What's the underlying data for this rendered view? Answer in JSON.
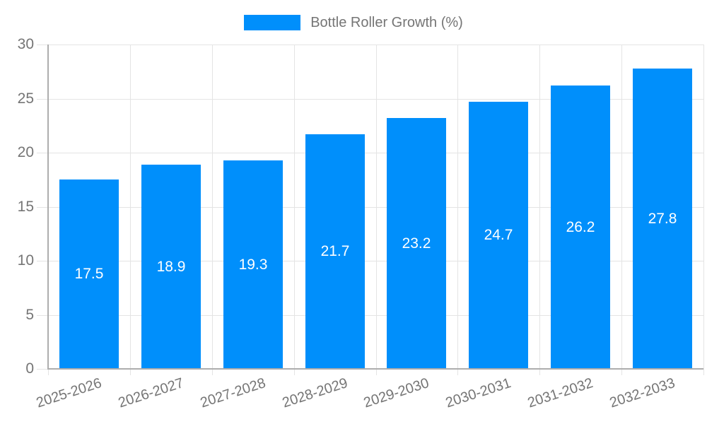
{
  "legend": {
    "label": "Bottle Roller Growth (%)",
    "swatch_color": "#008FFB"
  },
  "chart_data": {
    "type": "bar",
    "title": "",
    "series_name": "Bottle Roller Growth (%)",
    "categories": [
      "2025-2026",
      "2026-2027",
      "2027-2028",
      "2028-2029",
      "2029-2030",
      "2030-2031",
      "2031-2032",
      "2032-2033"
    ],
    "values": [
      17.5,
      18.9,
      19.3,
      21.7,
      23.2,
      24.7,
      26.2,
      27.8
    ],
    "data_labels": [
      "17.5",
      "18.9",
      "19.3",
      "21.7",
      "23.2",
      "24.7",
      "26.2",
      "27.8"
    ],
    "xlabel": "",
    "ylabel": "",
    "ylim": [
      0,
      30
    ],
    "yticks": [
      0,
      5,
      10,
      15,
      20,
      25,
      30
    ],
    "grid": "horizontal and vertical light gray lines",
    "legend_position": "top-center",
    "bar_color": "#008FFB",
    "label_color": "#757575",
    "data_label_color": "#ffffff",
    "x_label_rotation_deg": -18
  }
}
